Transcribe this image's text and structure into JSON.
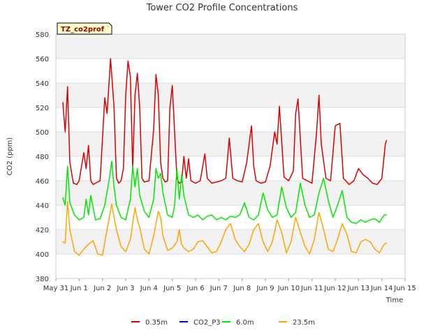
{
  "chart_data": {
    "type": "line",
    "title": "Tower CO2 Profile Concentrations",
    "tag": "TZ_co2prof",
    "xlabel": "Time",
    "ylabel": "CO2 (ppm)",
    "xlim": [
      0,
      15
    ],
    "ylim": [
      380,
      580
    ],
    "x_ticks": [
      {
        "pos": 0,
        "label": "May 31"
      },
      {
        "pos": 1,
        "label": "Jun 1"
      },
      {
        "pos": 2,
        "label": "Jun 2"
      },
      {
        "pos": 3,
        "label": "Jun 3"
      },
      {
        "pos": 4,
        "label": "Jun 4"
      },
      {
        "pos": 5,
        "label": "Jun 5"
      },
      {
        "pos": 6,
        "label": "Jun 6"
      },
      {
        "pos": 7,
        "label": "Jun 7"
      },
      {
        "pos": 8,
        "label": "Jun 8"
      },
      {
        "pos": 9,
        "label": "Jun 9"
      },
      {
        "pos": 10,
        "label": "Jun 10"
      },
      {
        "pos": 11,
        "label": "Jun 11"
      },
      {
        "pos": 12,
        "label": "Jun 12"
      },
      {
        "pos": 13,
        "label": "Jun 13"
      },
      {
        "pos": 14,
        "label": "Jun 14"
      },
      {
        "pos": 15,
        "label": "Jun 15"
      }
    ],
    "y_ticks": [
      "380",
      "400",
      "420",
      "440",
      "460",
      "480",
      "500",
      "520",
      "540",
      "560",
      "580"
    ],
    "series": [
      {
        "name": "0.35m",
        "color": "#dd0000",
        "x": [
          0.3,
          0.4,
          0.5,
          0.6,
          0.75,
          0.9,
          1.0,
          1.2,
          1.3,
          1.4,
          1.5,
          1.6,
          1.7,
          1.9,
          2.1,
          2.2,
          2.35,
          2.5,
          2.6,
          2.7,
          2.8,
          2.9,
          3.0,
          3.1,
          3.2,
          3.3,
          3.4,
          3.5,
          3.6,
          3.7,
          3.8,
          4.0,
          4.2,
          4.3,
          4.4,
          4.5,
          4.6,
          4.7,
          4.8,
          4.9,
          5.0,
          5.2,
          5.3,
          5.4,
          5.5,
          5.6,
          5.7,
          5.8,
          6.0,
          6.2,
          6.4,
          6.5,
          6.7,
          6.9,
          7.1,
          7.3,
          7.45,
          7.6,
          7.8,
          8.0,
          8.2,
          8.4,
          8.5,
          8.6,
          8.8,
          9.0,
          9.2,
          9.4,
          9.5,
          9.6,
          9.8,
          10.0,
          10.2,
          10.3,
          10.4,
          10.6,
          10.8,
          11.0,
          11.2,
          11.3,
          11.4,
          11.6,
          11.8,
          12.0,
          12.2,
          12.35,
          12.6,
          12.8,
          13.0,
          13.2,
          13.4,
          13.6,
          13.8,
          14.0,
          14.15,
          14.2
        ],
        "values": [
          524,
          500,
          537,
          475,
          458,
          457,
          460,
          483,
          470,
          489,
          460,
          457,
          458,
          460,
          528,
          515,
          560,
          520,
          462,
          458,
          460,
          470,
          530,
          558,
          545,
          470,
          530,
          548,
          520,
          462,
          459,
          460,
          502,
          547,
          530,
          475,
          462,
          459,
          460,
          520,
          538,
          462,
          458,
          459,
          480,
          462,
          478,
          460,
          458,
          460,
          482,
          462,
          458,
          459,
          460,
          462,
          495,
          462,
          460,
          459,
          475,
          505,
          472,
          460,
          458,
          459,
          472,
          500,
          490,
          521,
          463,
          460,
          468,
          515,
          527,
          462,
          460,
          458,
          500,
          530,
          490,
          462,
          460,
          505,
          507,
          462,
          457,
          460,
          470,
          465,
          462,
          458,
          457,
          462,
          490,
          493
        ]
      },
      {
        "name": "CO2_P3",
        "color": "#0000cc",
        "x": [],
        "values": []
      },
      {
        "name": "6.0m",
        "color": "#00e800",
        "x": [
          0.3,
          0.4,
          0.5,
          0.6,
          0.8,
          1.0,
          1.2,
          1.3,
          1.4,
          1.5,
          1.7,
          1.9,
          2.1,
          2.3,
          2.4,
          2.5,
          2.6,
          2.8,
          3.0,
          3.2,
          3.3,
          3.4,
          3.5,
          3.6,
          3.8,
          4.0,
          4.2,
          4.3,
          4.4,
          4.5,
          4.6,
          4.8,
          5.0,
          5.1,
          5.2,
          5.3,
          5.4,
          5.5,
          5.7,
          5.9,
          6.1,
          6.3,
          6.5,
          6.7,
          6.9,
          7.1,
          7.3,
          7.5,
          7.7,
          7.9,
          8.1,
          8.3,
          8.5,
          8.7,
          8.9,
          9.1,
          9.3,
          9.5,
          9.7,
          9.9,
          10.1,
          10.3,
          10.5,
          10.7,
          10.9,
          11.1,
          11.3,
          11.5,
          11.7,
          11.9,
          12.1,
          12.3,
          12.5,
          12.7,
          12.9,
          13.1,
          13.3,
          13.5,
          13.7,
          13.9,
          14.1,
          14.2
        ],
        "values": [
          446,
          440,
          472,
          442,
          432,
          428,
          430,
          445,
          432,
          448,
          428,
          429,
          440,
          462,
          476,
          455,
          440,
          430,
          428,
          445,
          472,
          455,
          470,
          448,
          435,
          430,
          445,
          470,
          462,
          466,
          450,
          432,
          430,
          440,
          470,
          445,
          465,
          448,
          432,
          430,
          432,
          428,
          431,
          432,
          428,
          430,
          428,
          431,
          430,
          432,
          442,
          430,
          428,
          432,
          450,
          436,
          430,
          432,
          455,
          438,
          430,
          434,
          458,
          440,
          430,
          432,
          450,
          462,
          444,
          430,
          440,
          452,
          430,
          426,
          425,
          428,
          426,
          428,
          429,
          426,
          432,
          432
        ]
      },
      {
        "name": "23.5m",
        "color": "#ffa500",
        "x": [
          0.3,
          0.4,
          0.5,
          0.6,
          0.8,
          1.0,
          1.2,
          1.4,
          1.6,
          1.8,
          2.0,
          2.2,
          2.4,
          2.5,
          2.6,
          2.8,
          3.0,
          3.2,
          3.4,
          3.5,
          3.6,
          3.8,
          4.0,
          4.2,
          4.4,
          4.5,
          4.6,
          4.8,
          5.0,
          5.2,
          5.3,
          5.4,
          5.5,
          5.7,
          5.9,
          6.1,
          6.3,
          6.5,
          6.7,
          6.9,
          7.1,
          7.3,
          7.5,
          7.7,
          7.9,
          8.1,
          8.3,
          8.5,
          8.7,
          8.9,
          9.1,
          9.3,
          9.5,
          9.7,
          9.9,
          10.1,
          10.3,
          10.5,
          10.7,
          10.9,
          11.1,
          11.3,
          11.5,
          11.7,
          11.9,
          12.1,
          12.3,
          12.5,
          12.7,
          12.9,
          13.1,
          13.3,
          13.5,
          13.7,
          13.9,
          14.1,
          14.2
        ],
        "values": [
          410,
          409,
          443,
          420,
          402,
          399,
          404,
          408,
          411,
          400,
          399,
          420,
          441,
          430,
          420,
          406,
          402,
          412,
          438,
          428,
          422,
          404,
          400,
          415,
          435,
          430,
          415,
          403,
          405,
          410,
          420,
          408,
          405,
          402,
          404,
          410,
          411,
          406,
          401,
          402,
          410,
          420,
          425,
          412,
          406,
          402,
          408,
          420,
          425,
          410,
          402,
          410,
          428,
          418,
          401,
          410,
          430,
          418,
          406,
          400,
          412,
          434,
          420,
          404,
          402,
          412,
          425,
          416,
          402,
          401,
          410,
          412,
          410,
          404,
          401,
          408,
          409
        ]
      }
    ]
  }
}
